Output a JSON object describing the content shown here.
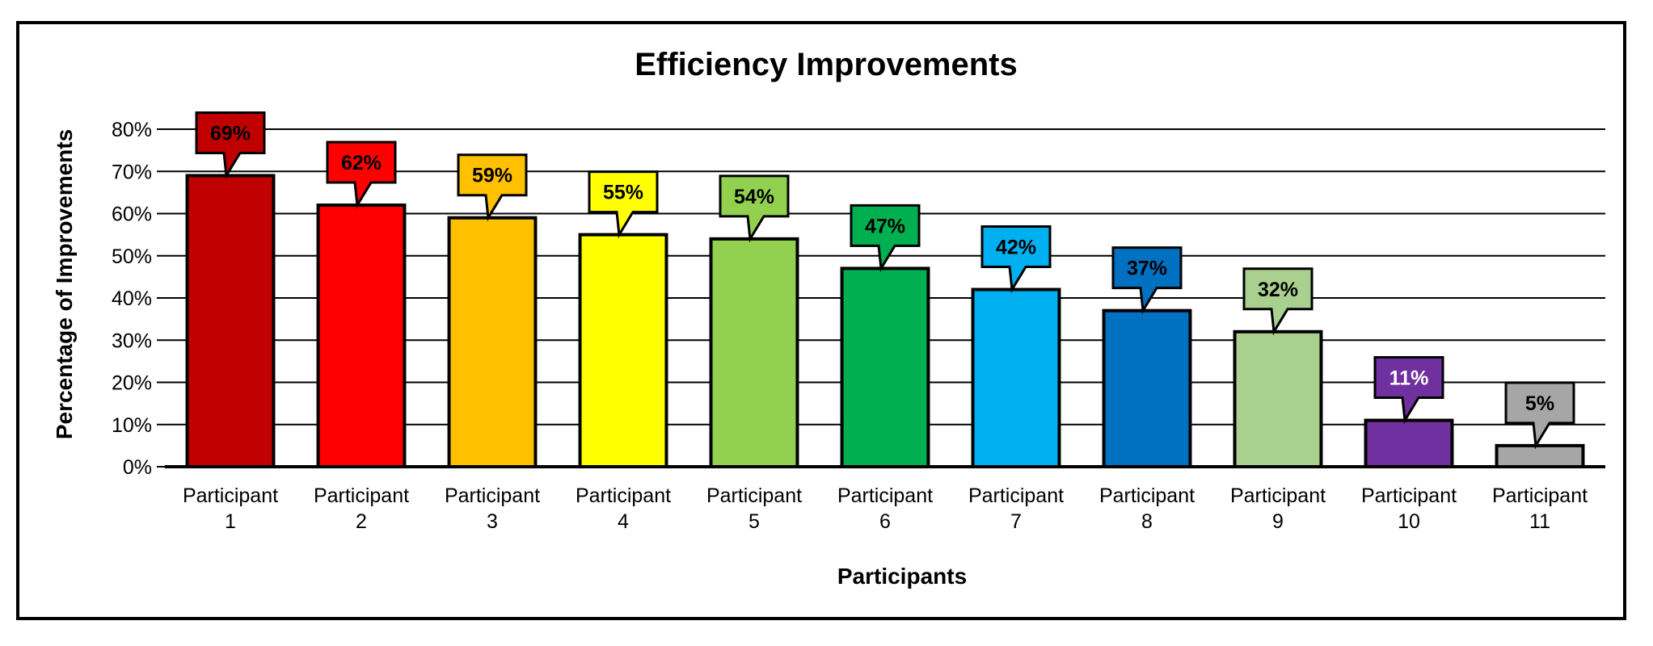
{
  "chart_data": {
    "type": "bar",
    "title": "Efficiency Improvements",
    "xlabel": "Participants",
    "ylabel": "Percentage of  Improvements",
    "categories": [
      [
        "Participant",
        "1"
      ],
      [
        "Participant",
        "2"
      ],
      [
        "Participant",
        "3"
      ],
      [
        "Participant",
        "4"
      ],
      [
        "Participant",
        "5"
      ],
      [
        "Participant",
        "6"
      ],
      [
        "Participant",
        "7"
      ],
      [
        "Participant",
        "8"
      ],
      [
        "Participant",
        "9"
      ],
      [
        "Participant",
        "10"
      ],
      [
        "Participant",
        "11"
      ]
    ],
    "values": [
      69,
      62,
      59,
      55,
      54,
      47,
      42,
      37,
      32,
      11,
      5
    ],
    "data_labels": [
      "69%",
      "62%",
      "59%",
      "55%",
      "54%",
      "47%",
      "42%",
      "37%",
      "32%",
      "11%",
      "5%"
    ],
    "colors": [
      "#C00000",
      "#FF0000",
      "#FFC000",
      "#FFFF00",
      "#92D050",
      "#00B050",
      "#00B0F0",
      "#0070C0",
      "#A9D08E",
      "#7030A0",
      "#A6A6A6"
    ],
    "label_text_colors": [
      "#000000",
      "#000000",
      "#000000",
      "#000000",
      "#000000",
      "#000000",
      "#000000",
      "#000000",
      "#000000",
      "#ffffff",
      "#000000"
    ],
    "ylim": [
      0,
      80
    ],
    "yticks": [
      0,
      10,
      20,
      30,
      40,
      50,
      60,
      70,
      80
    ],
    "ytick_labels": [
      "0%",
      "10%",
      "20%",
      "30%",
      "40%",
      "50%",
      "60%",
      "70%",
      "80%"
    ],
    "grid": true,
    "legend": "none"
  }
}
